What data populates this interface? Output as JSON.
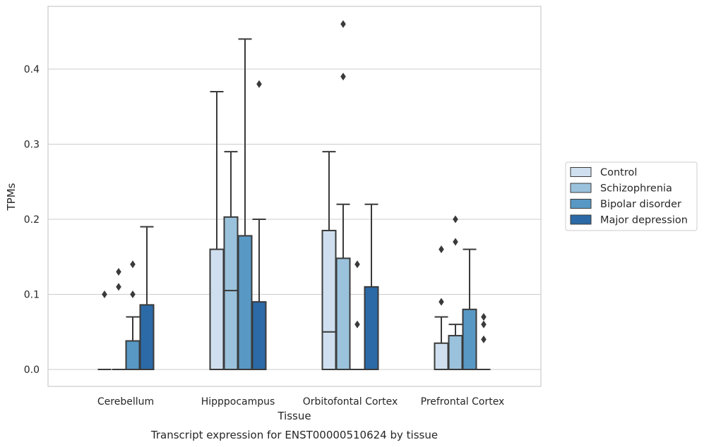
{
  "chart_data": {
    "type": "box",
    "caption": "Transcript expression for ENST00000510624 by tissue",
    "xlabel": "Tissue",
    "ylabel": "TPMs",
    "ylim": [
      -0.023,
      0.485
    ],
    "yticks": [
      0.0,
      0.1,
      0.2,
      0.3,
      0.4
    ],
    "ytick_labels": [
      "0.0",
      "0.1",
      "0.2",
      "0.3",
      "0.4"
    ],
    "grid": "horizontal",
    "legend_position": "right",
    "categories": [
      "Cerebellum",
      "Hipppocampus",
      "Orbitofontal Cortex",
      "Prefrontal Cortex"
    ],
    "series": [
      {
        "name": "Control",
        "color": "#cfdfef",
        "boxes": [
          {
            "q1": 0.0,
            "median": 0.0,
            "q3": 0.0,
            "whislo": 0.0,
            "whishi": 0.0,
            "fliers": [
              0.1
            ]
          },
          {
            "q1": 0.0,
            "median": 0.0,
            "q3": 0.16,
            "whislo": 0.0,
            "whishi": 0.37,
            "fliers": []
          },
          {
            "q1": 0.0,
            "median": 0.05,
            "q3": 0.185,
            "whislo": 0.0,
            "whishi": 0.29,
            "fliers": []
          },
          {
            "q1": 0.0,
            "median": 0.0,
            "q3": 0.035,
            "whislo": 0.0,
            "whishi": 0.07,
            "fliers": [
              0.09,
              0.16
            ]
          }
        ]
      },
      {
        "name": "Schizophrenia",
        "color": "#9ac2dc",
        "boxes": [
          {
            "q1": 0.0,
            "median": 0.0,
            "q3": 0.0,
            "whislo": 0.0,
            "whishi": 0.0,
            "fliers": [
              0.11,
              0.13
            ]
          },
          {
            "q1": 0.0,
            "median": 0.105,
            "q3": 0.203,
            "whislo": 0.0,
            "whishi": 0.29,
            "fliers": []
          },
          {
            "q1": 0.0,
            "median": 0.0,
            "q3": 0.148,
            "whislo": 0.0,
            "whishi": 0.22,
            "fliers": [
              0.39,
              0.46
            ]
          },
          {
            "q1": 0.0,
            "median": 0.0,
            "q3": 0.045,
            "whislo": 0.0,
            "whishi": 0.06,
            "fliers": [
              0.17,
              0.2
            ]
          }
        ]
      },
      {
        "name": "Bipolar disorder",
        "color": "#5898c4",
        "boxes": [
          {
            "q1": 0.0,
            "median": 0.0,
            "q3": 0.038,
            "whislo": 0.0,
            "whishi": 0.07,
            "fliers": [
              0.1,
              0.14
            ]
          },
          {
            "q1": 0.0,
            "median": 0.0,
            "q3": 0.178,
            "whislo": 0.0,
            "whishi": 0.44,
            "fliers": []
          },
          {
            "q1": 0.0,
            "median": 0.0,
            "q3": 0.0,
            "whislo": 0.0,
            "whishi": 0.0,
            "fliers": [
              0.06,
              0.14
            ]
          },
          {
            "q1": 0.0,
            "median": 0.0,
            "q3": 0.08,
            "whislo": 0.0,
            "whishi": 0.16,
            "fliers": []
          }
        ]
      },
      {
        "name": "Major depression",
        "color": "#2b6aa6",
        "boxes": [
          {
            "q1": 0.0,
            "median": 0.0,
            "q3": 0.086,
            "whislo": 0.0,
            "whishi": 0.19,
            "fliers": []
          },
          {
            "q1": 0.0,
            "median": 0.0,
            "q3": 0.09,
            "whislo": 0.0,
            "whishi": 0.2,
            "fliers": [
              0.38
            ]
          },
          {
            "q1": 0.0,
            "median": 0.0,
            "q3": 0.11,
            "whislo": 0.0,
            "whishi": 0.22,
            "fliers": []
          },
          {
            "q1": 0.0,
            "median": 0.0,
            "q3": 0.0,
            "whislo": 0.0,
            "whishi": 0.0,
            "fliers": [
              0.04,
              0.06,
              0.07
            ]
          }
        ]
      }
    ]
  }
}
